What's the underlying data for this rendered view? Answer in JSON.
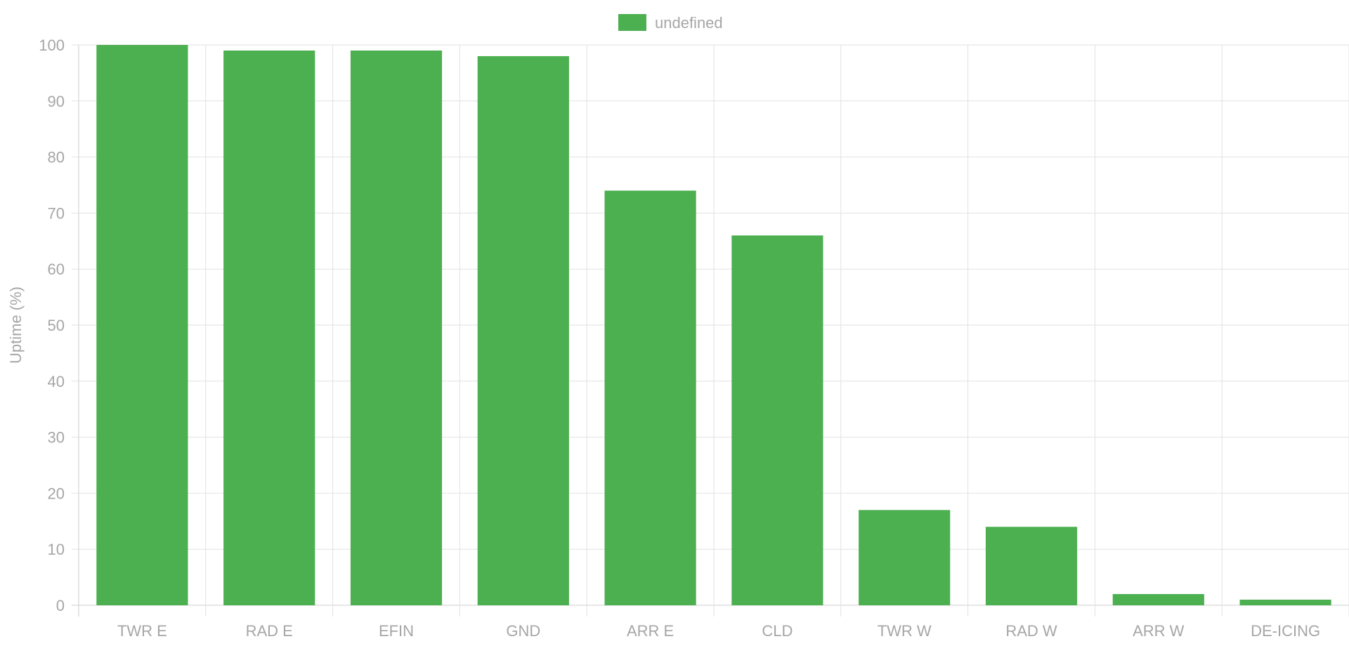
{
  "chart_data": {
    "type": "bar",
    "categories": [
      "TWR E",
      "RAD E",
      "EFIN",
      "GND",
      "ARR E",
      "CLD",
      "TWR W",
      "RAD W",
      "ARR W",
      "DE-ICING"
    ],
    "series": [
      {
        "name": "undefined",
        "values": [
          100,
          99,
          99,
          98,
          74,
          66,
          17,
          14,
          2,
          1
        ]
      }
    ],
    "ylabel": "Uptime (%)",
    "ylim": [
      0,
      100
    ],
    "yticks": [
      0,
      10,
      20,
      30,
      40,
      50,
      60,
      70,
      80,
      90,
      100
    ],
    "grid": true,
    "legend": "top-center",
    "colors": {
      "bar": "#4caf50"
    }
  }
}
